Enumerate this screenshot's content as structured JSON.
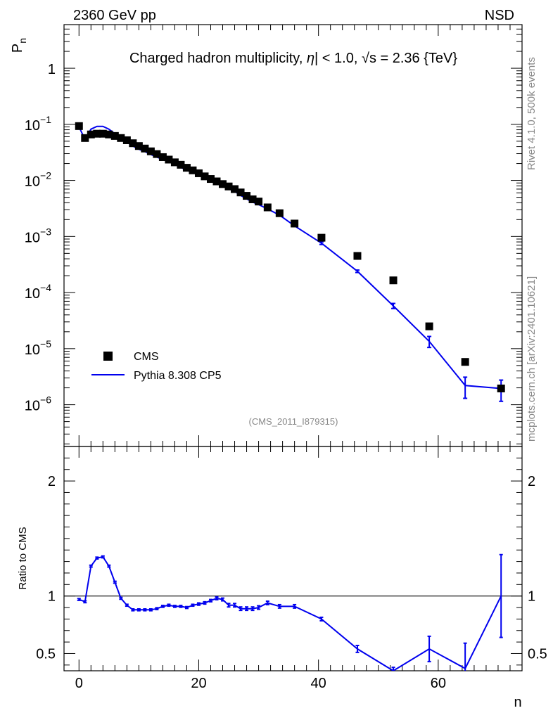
{
  "header": {
    "left": "2360 GeV pp",
    "right": "NSD",
    "title": "Charged hadron multiplicity, |η| < 1.0, √s = 2.36 {TeV}",
    "title_parts": [
      "Charged hadron multiplicity, ",
      "η",
      "| < 1.0, ",
      "s = 2.36 {TeV}"
    ],
    "analysis_id": "(CMS_2011_I879315)",
    "side_rivet": "Rivet 4.1.0,  500k events",
    "side_mcplots": "mcplots.cern.ch [arXiv:2401.10621]"
  },
  "legend": {
    "data_label": "CMS",
    "mc_label": "Pythia 8.308 CP5"
  },
  "colors": {
    "data": "#000000",
    "mc": "#0000ee",
    "axis": "#000000",
    "aux_text": "#888888"
  },
  "chart_data": [
    {
      "type": "scatter+line",
      "name": "main",
      "ylabel": "P_n",
      "ylabel_main": "P",
      "ylabel_sub": "n",
      "yscale": "log",
      "ylim": [
        1.8e-07,
        6
      ],
      "xlim": [
        -2.5,
        74
      ],
      "ytick_labels": [
        {
          "value": 1e-06,
          "base": "10",
          "exp": "−6"
        },
        {
          "value": 1e-05,
          "base": "10",
          "exp": "−5"
        },
        {
          "value": 0.0001,
          "base": "10",
          "exp": "−4"
        },
        {
          "value": 0.001,
          "base": "10",
          "exp": "−3"
        },
        {
          "value": 0.01,
          "base": "10",
          "exp": "−2"
        },
        {
          "value": 0.1,
          "base": "10",
          "exp": "−1"
        },
        {
          "value": 1,
          "base": "1",
          "exp": ""
        }
      ],
      "series": [
        {
          "name": "CMS",
          "style": "markers",
          "x": [
            0,
            1,
            2,
            3,
            4,
            5,
            6,
            7,
            8,
            9,
            10,
            11,
            12,
            13,
            14,
            15,
            16,
            17,
            18,
            19,
            20,
            21,
            22,
            23,
            24,
            25,
            26,
            27,
            28,
            29,
            30,
            31.5,
            33.5,
            36,
            40.5,
            46.5,
            52.5,
            58.5,
            64.5,
            70.5
          ],
          "y": [
            0.093,
            0.057,
            0.066,
            0.068,
            0.068,
            0.066,
            0.062,
            0.057,
            0.052,
            0.046,
            0.041,
            0.037,
            0.033,
            0.0295,
            0.026,
            0.0235,
            0.021,
            0.019,
            0.0168,
            0.0151,
            0.0134,
            0.0118,
            0.0106,
            0.0096,
            0.0086,
            0.0078,
            0.007,
            0.0061,
            0.0053,
            0.0046,
            0.0042,
            0.0033,
            0.0026,
            0.0017,
            0.00095,
            0.00045,
            0.000165,
            2.5e-05,
            5.8e-06,
            1.95e-06
          ]
        },
        {
          "name": "Pythia 8.308 CP5",
          "style": "line",
          "x": [
            0,
            1,
            2,
            3,
            4,
            5,
            6,
            7,
            8,
            9,
            10,
            11,
            12,
            13,
            14,
            15,
            16,
            17,
            18,
            19,
            20,
            21,
            22,
            23,
            24,
            25,
            26,
            27,
            28,
            29,
            30,
            31.5,
            33.5,
            36,
            40.5,
            46.5,
            52.5,
            58.5,
            64.5,
            70.5
          ],
          "y": [
            0.09,
            0.054,
            0.082,
            0.092,
            0.092,
            0.082,
            0.068,
            0.056,
            0.048,
            0.041,
            0.036,
            0.0327,
            0.029,
            0.026,
            0.0237,
            0.0216,
            0.0192,
            0.0171,
            0.0152,
            0.0139,
            0.0124,
            0.0111,
            0.01,
            0.0093,
            0.0084,
            0.0071,
            0.0064,
            0.0054,
            0.0047,
            0.0041,
            0.0037,
            0.0031,
            0.0024,
            0.00155,
            0.00076,
            0.00024,
            5.8e-05,
            1.35e-05,
            2.2e-06,
            1.95e-06
          ],
          "yerr": [
            0,
            0,
            0,
            0,
            0,
            0,
            0,
            0,
            0,
            0,
            0,
            0,
            0,
            0,
            0,
            0,
            0,
            0,
            0,
            0,
            0,
            0,
            0,
            0,
            0,
            0,
            0,
            0,
            0,
            0,
            0,
            0,
            0,
            0,
            4e-05,
            1.2e-05,
            6e-06,
            3e-06,
            9e-07,
            8e-07
          ]
        }
      ]
    },
    {
      "type": "line",
      "name": "ratio",
      "ylabel": "Ratio to CMS",
      "xlabel": "n",
      "ylim": [
        0.35,
        2.3
      ],
      "xlim": [
        -2.5,
        74
      ],
      "xticks": [
        0,
        20,
        40,
        60
      ],
      "yticks": [
        0.5,
        1,
        2
      ],
      "ytick_labels": [
        "0.5",
        "1",
        "2"
      ],
      "reference_line": 1,
      "series": [
        {
          "name": "Pythia 8.308 CP5 / CMS",
          "x": [
            0,
            1,
            2,
            3,
            4,
            5,
            6,
            7,
            8,
            9,
            10,
            11,
            12,
            13,
            14,
            15,
            16,
            17,
            18,
            19,
            20,
            21,
            22,
            23,
            24,
            25,
            26,
            27,
            28,
            29,
            30,
            31.5,
            33.5,
            36,
            40.5,
            46.5,
            52.5,
            58.5,
            64.5,
            70.5
          ],
          "y": [
            0.97,
            0.95,
            1.26,
            1.33,
            1.34,
            1.26,
            1.12,
            0.98,
            0.92,
            0.88,
            0.88,
            0.88,
            0.88,
            0.89,
            0.91,
            0.92,
            0.91,
            0.91,
            0.9,
            0.92,
            0.93,
            0.94,
            0.96,
            0.98,
            0.97,
            0.92,
            0.92,
            0.89,
            0.89,
            0.89,
            0.9,
            0.94,
            0.91,
            0.91,
            0.8,
            0.54,
            0.35,
            0.54,
            0.37,
            1.0
          ],
          "yerr": [
            0.008,
            0.008,
            0.008,
            0.008,
            0.008,
            0.008,
            0.008,
            0.008,
            0.008,
            0.008,
            0.008,
            0.008,
            0.008,
            0.008,
            0.008,
            0.008,
            0.008,
            0.008,
            0.008,
            0.008,
            0.01,
            0.01,
            0.01,
            0.012,
            0.012,
            0.015,
            0.015,
            0.015,
            0.015,
            0.015,
            0.015,
            0.015,
            0.015,
            0.015,
            0.015,
            0.03,
            0.03,
            0.11,
            0.22,
            0.36
          ]
        }
      ]
    }
  ]
}
